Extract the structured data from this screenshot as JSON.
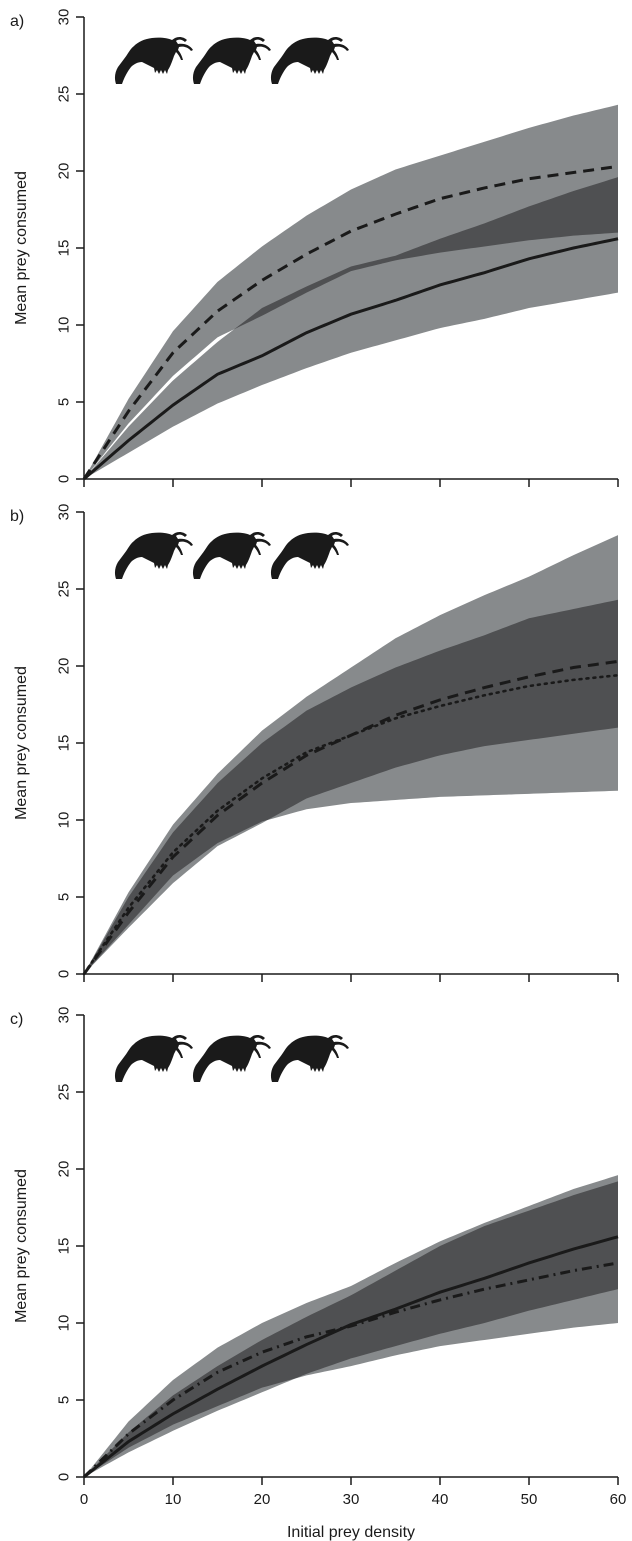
{
  "chart_data": [
    {
      "type": "line",
      "panel_label": "a)",
      "xlabel": "",
      "ylabel": "Mean prey consumed",
      "xlim": [
        0,
        60
      ],
      "ylim": [
        0,
        30
      ],
      "yticks": [
        0,
        5,
        10,
        15,
        20,
        25,
        30
      ],
      "xticks": [
        0,
        10,
        20,
        30,
        40,
        50,
        60
      ],
      "show_x_tick_labels": false,
      "icon_count": 3,
      "icon": "amphipod-silhouette",
      "series": [
        {
          "style": "solid",
          "x": [
            0,
            5,
            10,
            15,
            20,
            25,
            30,
            35,
            40,
            45,
            50,
            55,
            60
          ],
          "y": [
            0,
            2.5,
            4.8,
            6.8,
            8.0,
            9.5,
            10.7,
            11.6,
            12.6,
            13.4,
            14.3,
            15.0,
            15.6
          ],
          "ci_lower": [
            0,
            1.7,
            3.4,
            4.9,
            6.1,
            7.2,
            8.2,
            9.0,
            9.8,
            10.4,
            11.1,
            11.6,
            12.1
          ],
          "ci_upper": [
            0,
            3.4,
            6.4,
            8.9,
            11.1,
            12.5,
            13.8,
            14.5,
            15.6,
            16.6,
            17.7,
            18.7,
            19.6
          ]
        },
        {
          "style": "dashed",
          "x": [
            0,
            5,
            10,
            15,
            20,
            25,
            30,
            35,
            40,
            45,
            50,
            55,
            60
          ],
          "y": [
            0,
            4.4,
            8.2,
            10.9,
            12.9,
            14.6,
            16.1,
            17.2,
            18.2,
            18.9,
            19.5,
            19.9,
            20.3
          ],
          "ci_lower": [
            0,
            3.6,
            6.7,
            9.2,
            10.6,
            12.1,
            13.5,
            14.2,
            14.7,
            15.1,
            15.5,
            15.8,
            16.0
          ],
          "ci_upper": [
            0,
            5.2,
            9.6,
            12.8,
            15.1,
            17.1,
            18.8,
            20.1,
            21.0,
            21.9,
            22.8,
            23.6,
            24.3
          ]
        }
      ]
    },
    {
      "type": "line",
      "panel_label": "b)",
      "xlabel": "",
      "ylabel": "Mean prey consumed",
      "xlim": [
        0,
        60
      ],
      "ylim": [
        0,
        30
      ],
      "yticks": [
        0,
        5,
        10,
        15,
        20,
        25,
        30
      ],
      "xticks": [
        0,
        10,
        20,
        30,
        40,
        50,
        60
      ],
      "show_x_tick_labels": false,
      "icon_count": 3,
      "icon": "amphipod-silhouette",
      "series": [
        {
          "style": "dashed",
          "x": [
            0,
            5,
            10,
            15,
            20,
            25,
            30,
            35,
            40,
            45,
            50,
            55,
            60
          ],
          "y": [
            0,
            4.0,
            7.6,
            10.3,
            12.4,
            14.2,
            15.5,
            16.8,
            17.8,
            18.6,
            19.3,
            19.9,
            20.3
          ],
          "ci_lower": [
            0,
            3.0,
            5.9,
            8.3,
            9.8,
            11.4,
            12.4,
            13.4,
            14.2,
            14.8,
            15.2,
            15.6,
            16.0
          ],
          "ci_upper": [
            0,
            5.0,
            9.2,
            12.4,
            15.0,
            17.1,
            18.6,
            19.9,
            21.0,
            22.0,
            23.1,
            23.7,
            24.3
          ]
        },
        {
          "style": "dotted",
          "x": [
            0,
            5,
            10,
            15,
            20,
            25,
            30,
            35,
            40,
            45,
            50,
            55,
            60
          ],
          "y": [
            0,
            4.3,
            7.9,
            10.6,
            12.7,
            14.4,
            15.5,
            16.6,
            17.4,
            18.1,
            18.7,
            19.1,
            19.4
          ],
          "ci_lower": [
            0,
            3.2,
            6.4,
            8.5,
            9.9,
            10.7,
            11.1,
            11.3,
            11.5,
            11.6,
            11.7,
            11.8,
            11.9
          ],
          "ci_upper": [
            0,
            5.3,
            9.7,
            13.0,
            15.8,
            18.0,
            19.9,
            21.8,
            23.3,
            24.6,
            25.8,
            27.2,
            28.5
          ]
        }
      ]
    },
    {
      "type": "line",
      "panel_label": "c)",
      "xlabel": "Initial prey density",
      "ylabel": "Mean prey consumed",
      "xlim": [
        0,
        60
      ],
      "ylim": [
        0,
        30
      ],
      "yticks": [
        0,
        5,
        10,
        15,
        20,
        25,
        30
      ],
      "xticks": [
        0,
        10,
        20,
        30,
        40,
        50,
        60
      ],
      "x_tick_labels": [
        "0",
        "10",
        "20",
        "30",
        "40",
        "50",
        "60"
      ],
      "show_x_tick_labels": true,
      "icon_count": 3,
      "icon": "amphipod-silhouette",
      "series": [
        {
          "style": "solid",
          "x": [
            0,
            5,
            10,
            15,
            20,
            25,
            30,
            35,
            40,
            45,
            50,
            55,
            60
          ],
          "y": [
            0,
            2.3,
            4.1,
            5.7,
            7.2,
            8.6,
            9.9,
            10.9,
            12.0,
            12.9,
            13.9,
            14.8,
            15.6
          ],
          "ci_lower": [
            0,
            1.6,
            3.0,
            4.3,
            5.5,
            6.7,
            7.7,
            8.5,
            9.3,
            10.0,
            10.8,
            11.5,
            12.2
          ],
          "ci_upper": [
            0,
            2.9,
            5.3,
            7.2,
            8.9,
            10.4,
            11.8,
            13.4,
            15.0,
            16.3,
            17.3,
            18.3,
            19.2
          ]
        },
        {
          "style": "dashdot",
          "x": [
            0,
            5,
            10,
            15,
            20,
            25,
            30,
            35,
            40,
            45,
            50,
            55,
            60
          ],
          "y": [
            0,
            2.8,
            5.0,
            6.8,
            8.1,
            9.1,
            9.8,
            10.7,
            11.5,
            12.2,
            12.8,
            13.4,
            13.9
          ],
          "ci_lower": [
            0,
            1.9,
            3.4,
            4.6,
            5.8,
            6.6,
            7.2,
            7.9,
            8.5,
            8.9,
            9.3,
            9.7,
            10.0
          ],
          "ci_upper": [
            0,
            3.6,
            6.3,
            8.4,
            10.0,
            11.3,
            12.4,
            13.9,
            15.3,
            16.5,
            17.6,
            18.7,
            19.6
          ]
        }
      ]
    }
  ],
  "colors": {
    "band_light": "#878a8c",
    "band_dark": "#4f5052",
    "line": "#1a1a1a",
    "axis": "#1a1a1a",
    "background": "#ffffff"
  }
}
